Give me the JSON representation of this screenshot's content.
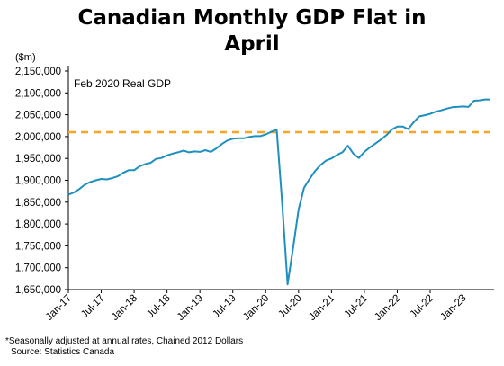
{
  "chart_data": {
    "type": "line",
    "title_lines": [
      "Canadian Monthly GDP Flat in",
      "April"
    ],
    "ylabel": "($m)",
    "ylim": [
      1650000,
      2150000
    ],
    "y_ticks": [
      {
        "value": 1650000,
        "label": "1,650,000"
      },
      {
        "value": 1700000,
        "label": "1,700,000"
      },
      {
        "value": 1750000,
        "label": "1,750,000"
      },
      {
        "value": 1800000,
        "label": "1,800,000"
      },
      {
        "value": 1850000,
        "label": "1,850,000"
      },
      {
        "value": 1900000,
        "label": "1,900,000"
      },
      {
        "value": 1950000,
        "label": "1,950,000"
      },
      {
        "value": 2000000,
        "label": "2,000,000"
      },
      {
        "value": 2050000,
        "label": "2,050,000"
      },
      {
        "value": 2100000,
        "label": "2,100,000"
      },
      {
        "value": 2150000,
        "label": "2,150,000"
      }
    ],
    "x_ticks": [
      "Jan-17",
      "Jul-17",
      "Jan-18",
      "Jul-18",
      "Jan-19",
      "Jul-19",
      "Jan-20",
      "Jul-20",
      "Jan-21",
      "Jul-21",
      "Jan-22",
      "Jul-22",
      "Jan-23"
    ],
    "x_start": "Jan-17",
    "x_end": "Apr-23",
    "grid": false,
    "series": [
      {
        "color": "#1f8fbf",
        "values": [
          1867000,
          1872000,
          1880000,
          1890000,
          1896000,
          1900000,
          1903000,
          1902000,
          1905000,
          1909000,
          1917000,
          1923000,
          1923000,
          1932000,
          1937000,
          1940000,
          1949000,
          1951000,
          1957000,
          1961000,
          1964000,
          1968000,
          1964000,
          1966000,
          1965000,
          1969000,
          1965000,
          1973000,
          1983000,
          1991000,
          1995000,
          1996000,
          1996000,
          1999000,
          2001000,
          2001000,
          2005000,
          2011000,
          2016000,
          1850000,
          1662000,
          1745000,
          1833000,
          1883000,
          1903000,
          1921000,
          1935000,
          1945000,
          1950000,
          1958000,
          1964000,
          1979000,
          1961000,
          1951000,
          1965000,
          1975000,
          1984000,
          1993000,
          2003000,
          2016000,
          2023000,
          2023000,
          2017000,
          2033000,
          2046000,
          2049000,
          2052000,
          2057000,
          2060000,
          2064000,
          2067000,
          2068000,
          2069000,
          2068000,
          2082000,
          2083000,
          2085000,
          2085000
        ]
      }
    ],
    "reference_line": {
      "label": "Feb 2020 Real GDP",
      "value": 2010000,
      "color": "#f5a623"
    },
    "footnotes": [
      "*Seasonally adjusted at annual rates, Chained 2012 Dollars",
      "Source: Statistics Canada"
    ]
  }
}
